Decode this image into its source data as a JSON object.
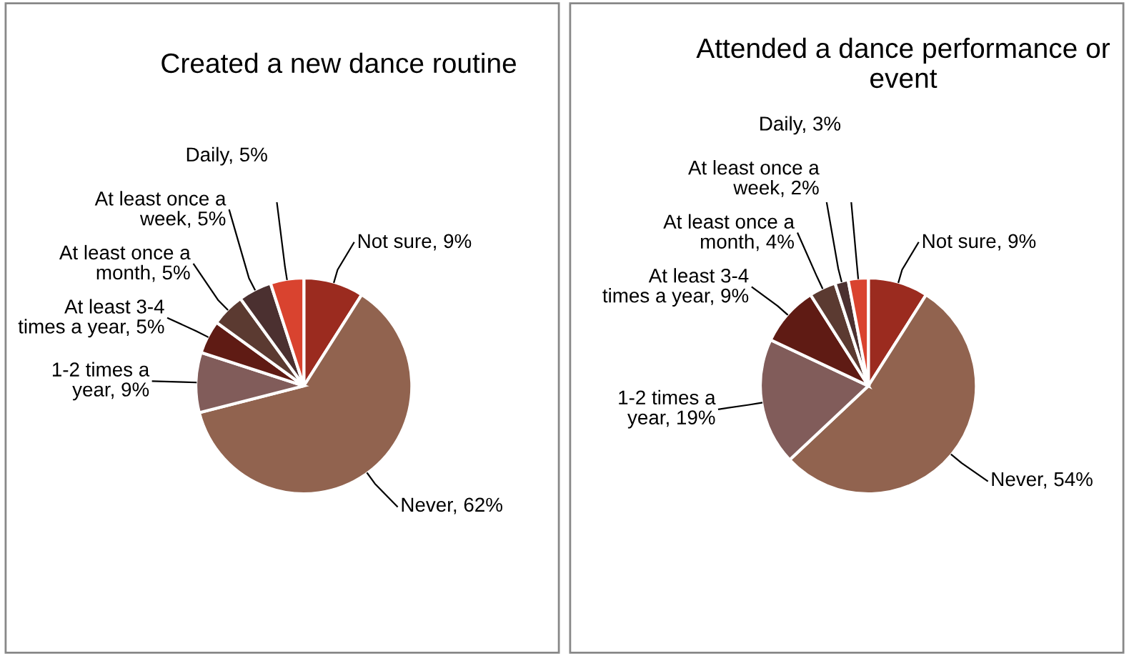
{
  "chart_data": [
    {
      "type": "pie",
      "title": "Created a new dance routine",
      "categories": [
        "Not sure",
        "Never",
        "1-2 times a year",
        "At least 3-4 times a year",
        "At least once a month",
        "At least once a week",
        "Daily"
      ],
      "values": [
        9,
        62,
        9,
        5,
        5,
        5,
        5
      ],
      "value_labels": [
        ", 9%",
        ", 62%",
        ", 9%",
        ", 5%",
        ", 5%",
        ", 5%",
        ", 5%"
      ],
      "colors": [
        "#9b2b1f",
        "#91634f",
        "#815c5a",
        "#5f1b14",
        "#5b3a31",
        "#4b3030",
        "#d9432f"
      ],
      "legend": false
    },
    {
      "type": "pie",
      "title": "Attended a dance performance or event",
      "categories": [
        "Not sure",
        "Never",
        "1-2 times a year",
        "At least 3-4 times a year",
        "At least once a month",
        "At least once a week",
        "Daily"
      ],
      "values": [
        9,
        54,
        19,
        9,
        4,
        2,
        3
      ],
      "value_labels": [
        ", 9%",
        ", 54%",
        ", 19%",
        ", 9%",
        ", 4%",
        ", 2%",
        ", 3%"
      ],
      "colors": [
        "#9b2b1f",
        "#91634f",
        "#815c5a",
        "#5f1b14",
        "#5b3a31",
        "#4b3030",
        "#d9432f"
      ],
      "legend": false
    }
  ]
}
